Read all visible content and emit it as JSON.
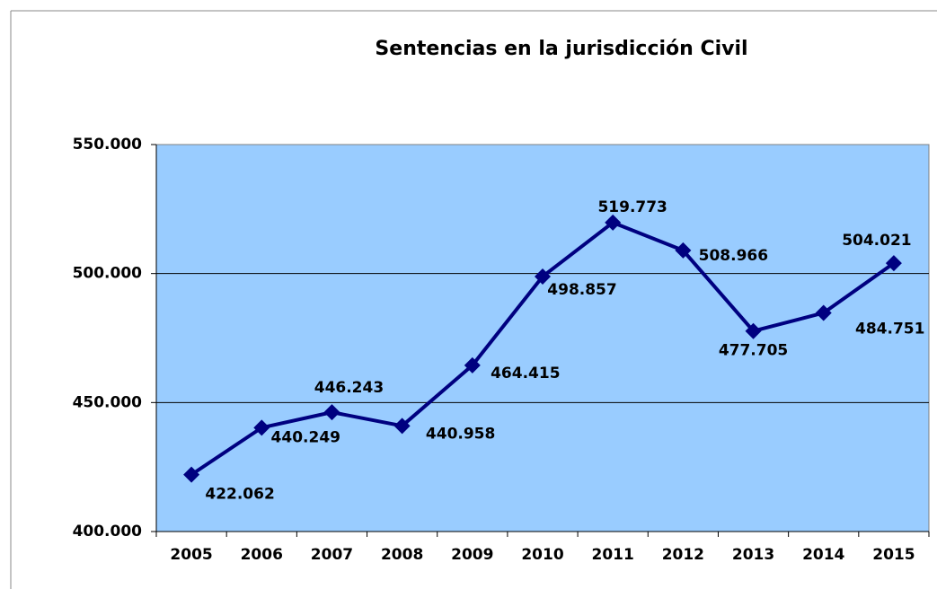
{
  "chart_data": {
    "type": "line",
    "title": "Sentencias en la jurisdicción Civil",
    "categories": [
      "2005",
      "2006",
      "2007",
      "2008",
      "2009",
      "2010",
      "2011",
      "2012",
      "2013",
      "2014",
      "2015"
    ],
    "series": [
      {
        "name": "Sentencias",
        "color": "#000080",
        "values": [
          422062,
          440249,
          446243,
          440958,
          464415,
          498857,
          519773,
          508966,
          477705,
          484751,
          504021
        ],
        "value_labels": [
          "422.062",
          "440.249",
          "446.243",
          "440.958",
          "464.415",
          "498.857",
          "519.773",
          "508.966",
          "477.705",
          "484.751",
          "504.021"
        ]
      }
    ],
    "ylim": [
      400000,
      550000
    ],
    "yticks": [
      {
        "value": 400000,
        "label": "400.000"
      },
      {
        "value": 450000,
        "label": "450.000"
      },
      {
        "value": 500000,
        "label": "500.000"
      },
      {
        "value": 550000,
        "label": "550.000"
      }
    ],
    "grid": true
  }
}
